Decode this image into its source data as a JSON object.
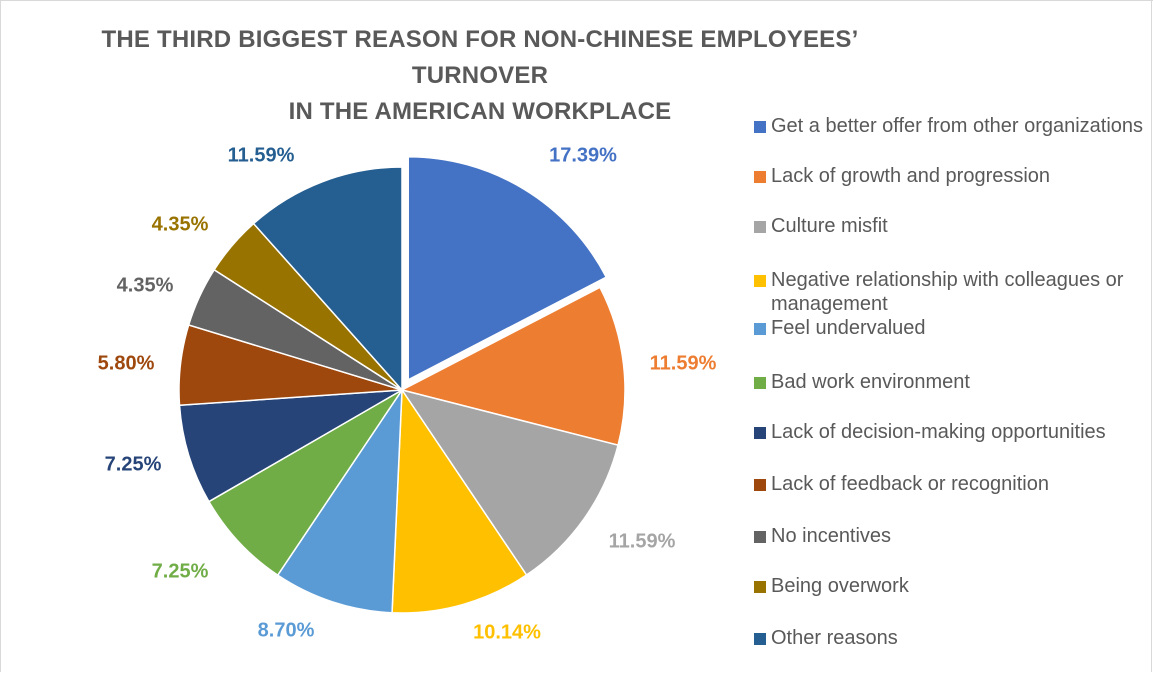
{
  "chart_data": {
    "type": "pie",
    "title": [
      "THE THIRD BIGGEST REASON FOR NON-CHINESE EMPLOYEES’ TURNOVER",
      "IN THE AMERICAN WORKPLACE"
    ],
    "legend_position": "right",
    "start_angle_deg": 0,
    "direction": "clockwise",
    "exploded_slice": 0,
    "slices": [
      {
        "label": "Get a better offer from other organizations",
        "value": 17.39,
        "display": "17.39%",
        "color": "#4472C4"
      },
      {
        "label": "Lack of growth and progression",
        "value": 11.59,
        "display": "11.59%",
        "color": "#ED7D31"
      },
      {
        "label": "Culture misfit",
        "value": 11.59,
        "display": "11.59%",
        "color": "#A5A5A5"
      },
      {
        "label": "Negative relationship with colleagues or management",
        "value": 10.14,
        "display": "10.14%",
        "color": "#FFC000"
      },
      {
        "label": "Feel undervalued",
        "value": 8.7,
        "display": "8.70%",
        "color": "#5B9BD5"
      },
      {
        "label": "Bad work environment",
        "value": 7.25,
        "display": "7.25%",
        "color": "#70AD47"
      },
      {
        "label": "Lack of decision-making opportunities",
        "value": 7.25,
        "display": "7.25%",
        "color": "#264478"
      },
      {
        "label": "Lack of feedback or recognition",
        "value": 5.8,
        "display": "5.80%",
        "color": "#9E480E"
      },
      {
        "label": "No incentives",
        "value": 4.35,
        "display": "4.35%",
        "color": "#636363"
      },
      {
        "label": "Being overwork",
        "value": 4.35,
        "display": "4.35%",
        "color": "#997300"
      },
      {
        "label": "Other reasons",
        "value": 11.59,
        "display": "11.59%",
        "color": "#255E91"
      }
    ]
  }
}
